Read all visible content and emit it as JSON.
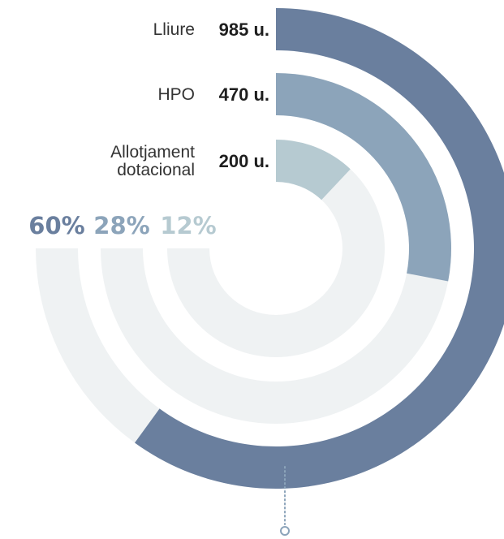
{
  "chart_data": {
    "type": "radial-bar",
    "title": "",
    "categories": [
      "Lliure",
      "HPO",
      "Allotjament dotacional"
    ],
    "category_lines": [
      [
        "Lliure"
      ],
      [
        "HPO"
      ],
      [
        "Allotjament",
        "dotacional"
      ]
    ],
    "value_labels": [
      "985 u.",
      "470 u.",
      "200 u."
    ],
    "values": [
      985,
      470,
      200
    ],
    "unit": "u.",
    "percent_labels": [
      "60%",
      "28%",
      "12%"
    ],
    "percents": [
      60,
      28,
      12
    ],
    "grid": false,
    "legend": "none"
  },
  "colors": {
    "lliure": "#6a7f9e",
    "hpo": "#8ca4ba",
    "dotacional": "#b6cad1",
    "track": "#eff2f3",
    "pointer": "#8ca4ba",
    "text": "#333333",
    "value_text": "#1e1e1e",
    "background": "#ffffff"
  },
  "decorations": {
    "pointer_icon": "dotted-line-circle-marker"
  }
}
